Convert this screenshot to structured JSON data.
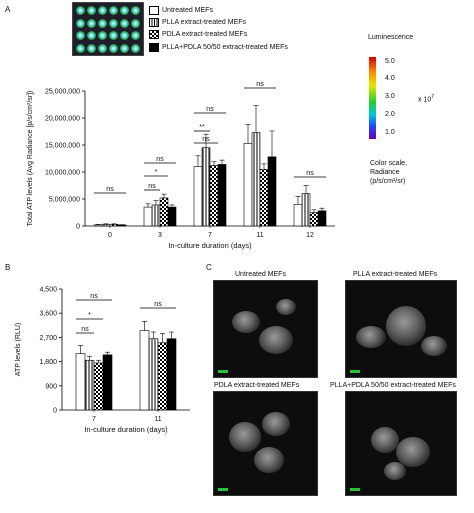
{
  "panels": {
    "a": "A",
    "b": "B",
    "c": "C"
  },
  "legend": [
    {
      "label": "Untreated MEFs",
      "pattern": "white"
    },
    {
      "label": "PLLA extract-treated MEFs",
      "pattern": "vertical-stripes"
    },
    {
      "label": "PDLA extract-treated MEFs",
      "pattern": "checkerboard"
    },
    {
      "label": "PLLA+PDLA 50/50 extract-treated MEFs",
      "pattern": "black"
    }
  ],
  "colorscale": {
    "title": "Luminescence",
    "ticks": [
      "5.0",
      "4.0",
      "3.0",
      "2.0",
      "1.0"
    ],
    "multiplier": "x 10",
    "exponent": "7",
    "caption_lines": [
      "Color scale,",
      "Radiance",
      "(p/s/cm²/sr)"
    ],
    "colors": [
      "#d00000",
      "#ff8800",
      "#e8e800",
      "#22cc33",
      "#00cccc",
      "#2244ff",
      "#6a00b0"
    ]
  },
  "microscopy": [
    {
      "label": "Untreated MEFs"
    },
    {
      "label": "PLLA extract-treated MEFs"
    },
    {
      "label": "PDLA extract-treated MEFs"
    },
    {
      "label": "PLLA+PDLA 50/50 extract-treated MEFs"
    }
  ],
  "chart_data": [
    {
      "type": "bar",
      "panel": "A",
      "ylabel": "Total ATP levels (Avg Radiance [p/s/cm²/sr])",
      "xlabel": "In-culture duration (days)",
      "ylim": [
        0,
        25000000
      ],
      "yticks": [
        0,
        5000000,
        10000000,
        15000000,
        20000000,
        25000000
      ],
      "ytick_labels": [
        "0",
        "5,000,000",
        "10,000,000",
        "15,000,000",
        "20,000,000",
        "25,000,000"
      ],
      "categories": [
        "0",
        "3",
        "7",
        "11",
        "12"
      ],
      "series": [
        {
          "name": "Untreated MEFs",
          "values": [
            200000,
            3500000,
            11000000,
            15300000,
            4000000
          ],
          "errors": [
            100000,
            600000,
            2000000,
            3500000,
            1500000
          ]
        },
        {
          "name": "PLLA extract-treated MEFs",
          "values": [
            300000,
            3900000,
            14500000,
            17300000,
            6000000
          ],
          "errors": [
            100000,
            800000,
            2500000,
            5000000,
            1500000
          ]
        },
        {
          "name": "PDLA extract-treated MEFs",
          "values": [
            300000,
            5200000,
            11200000,
            10500000,
            2500000
          ],
          "errors": [
            100000,
            700000,
            700000,
            1000000,
            500000
          ]
        },
        {
          "name": "PLLA+PDLA 50/50 extract-treated MEFs",
          "values": [
            200000,
            3500000,
            11400000,
            12800000,
            2800000
          ],
          "errors": [
            50000,
            400000,
            800000,
            4800000,
            500000
          ]
        }
      ],
      "annotations": [
        "ns",
        "ns",
        "*",
        "ns",
        "ns",
        "**",
        "ns",
        "ns",
        "ns"
      ]
    },
    {
      "type": "bar",
      "panel": "B",
      "ylabel": "ATP levels (RLU)",
      "xlabel": "In-culture duration (days)",
      "ylim": [
        0,
        4500
      ],
      "yticks": [
        0,
        900,
        1800,
        2700,
        3600,
        4500
      ],
      "ytick_labels": [
        "0",
        "900",
        "1,800",
        "2,700",
        "3,600",
        "4,500"
      ],
      "categories": [
        "7",
        "11"
      ],
      "series": [
        {
          "name": "Untreated MEFs",
          "values": [
            2100,
            2950
          ],
          "errors": [
            300,
            350
          ]
        },
        {
          "name": "PLLA extract-treated MEFs",
          "values": [
            1850,
            2650
          ],
          "errors": [
            150,
            250
          ]
        },
        {
          "name": "PDLA extract-treated MEFs",
          "values": [
            1750,
            2500
          ],
          "errors": [
            100,
            350
          ]
        },
        {
          "name": "PLLA+PDLA 50/50 extract-treated MEFs",
          "values": [
            2050,
            2650
          ],
          "errors": [
            100,
            250
          ]
        }
      ],
      "annotations": [
        "ns",
        "*",
        "ns",
        "ns"
      ]
    }
  ]
}
